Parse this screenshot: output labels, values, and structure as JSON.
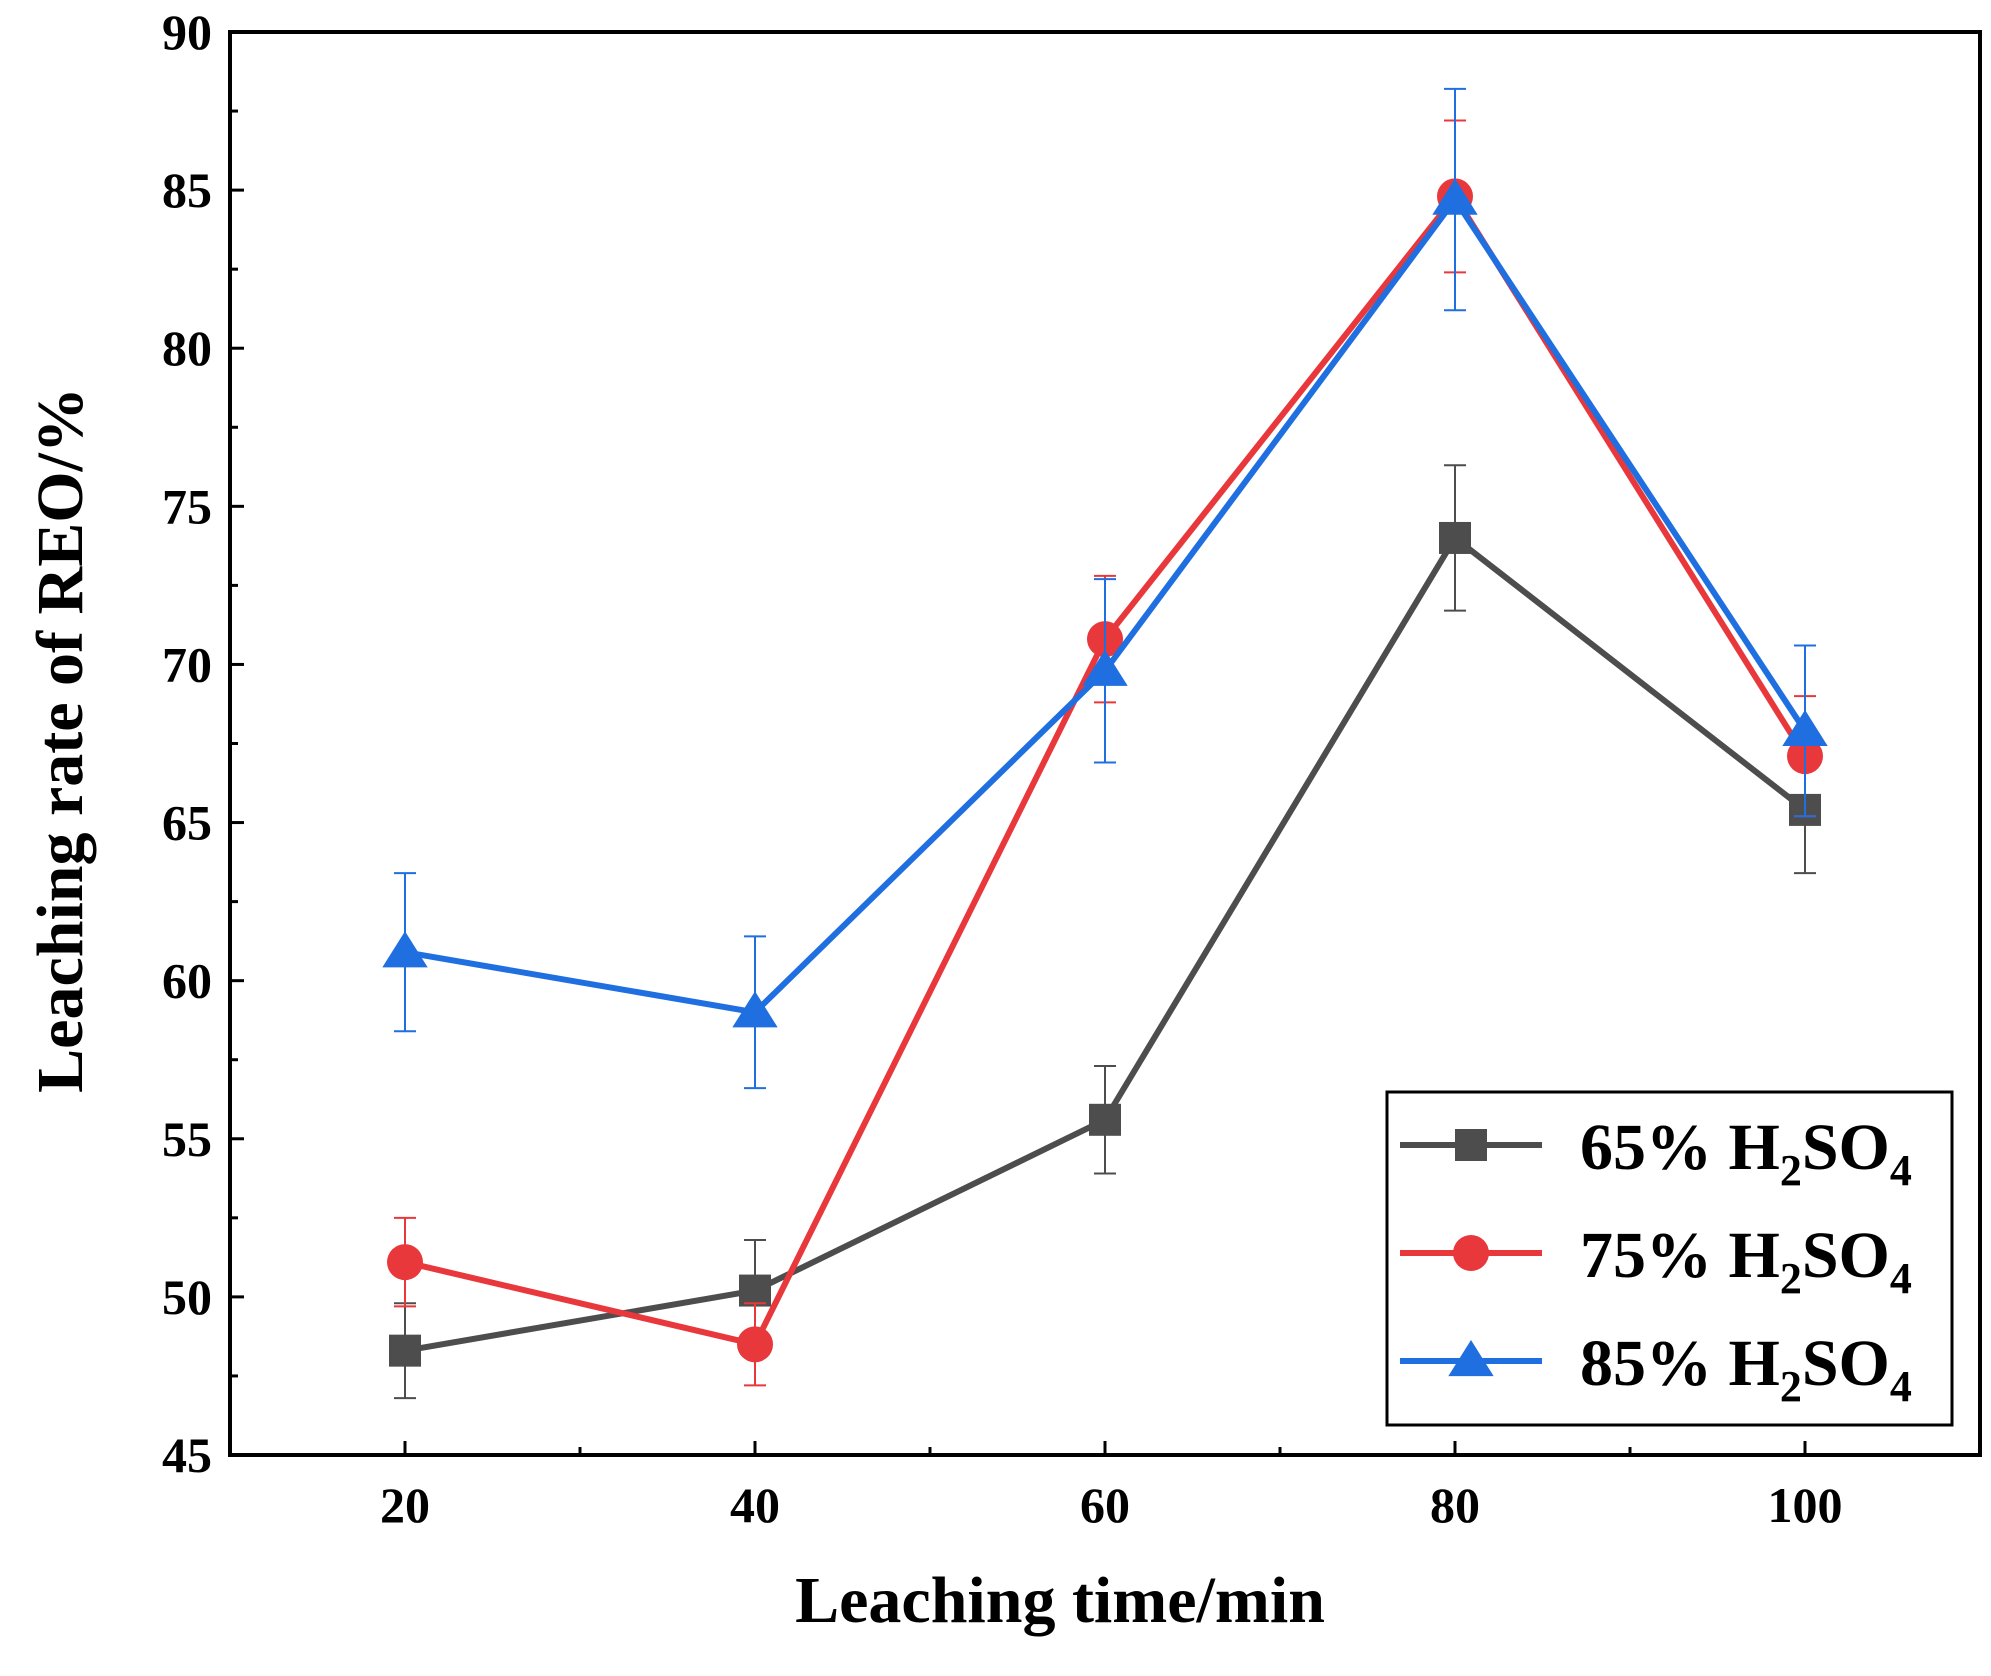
{
  "chart_data": {
    "type": "line",
    "title": "",
    "xlabel": "Leaching time/min",
    "ylabel": "Leaching rate of REO/%",
    "x": [
      20,
      40,
      60,
      80,
      100
    ],
    "xlim": [
      10,
      110
    ],
    "ylim": [
      45,
      90
    ],
    "xticks": [
      "20",
      "40",
      "60",
      "80",
      "100"
    ],
    "yticks": [
      "45",
      "50",
      "55",
      "60",
      "65",
      "70",
      "75",
      "80",
      "85",
      "90"
    ],
    "grid": false,
    "legend_position": "bottom-right",
    "series": [
      {
        "name": "65% H2SO4",
        "label_prefix": "65% H",
        "label_sub1": "2",
        "label_mid": "SO",
        "label_sub2": "4",
        "color": "#4d4d4d",
        "marker": "square",
        "values": [
          48.3,
          50.2,
          55.6,
          74.0,
          65.4
        ],
        "errors": [
          1.5,
          1.6,
          1.7,
          2.3,
          2.0
        ]
      },
      {
        "name": "75% H2SO4",
        "label_prefix": "75% H",
        "label_sub1": "2",
        "label_mid": "SO",
        "label_sub2": "4",
        "color": "#e8383c",
        "marker": "circle",
        "values": [
          51.1,
          48.5,
          70.8,
          84.8,
          67.1
        ],
        "errors": [
          1.4,
          1.3,
          2.0,
          2.4,
          1.9
        ]
      },
      {
        "name": "85% H2SO4",
        "label_prefix": "85% H",
        "label_sub1": "2",
        "label_mid": "SO",
        "label_sub2": "4",
        "color": "#1f6fe0",
        "marker": "triangle",
        "values": [
          60.9,
          59.0,
          69.8,
          84.7,
          67.9
        ],
        "errors": [
          2.5,
          2.4,
          2.9,
          3.5,
          2.7
        ]
      }
    ]
  }
}
